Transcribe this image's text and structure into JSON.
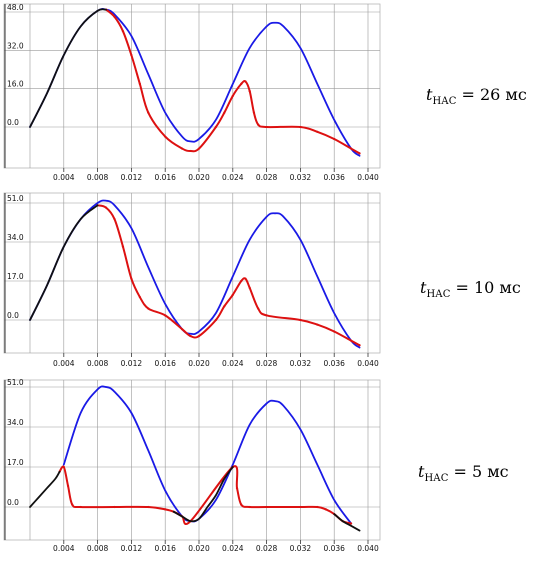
{
  "chart_data": [
    {
      "type": "line",
      "label": {
        "italic": "t",
        "sub": "НАС",
        "rest": " = 26 мс"
      },
      "x_ticks": [
        "0.004",
        "0.008",
        "0.012",
        "0.016",
        "0.020",
        "0.024",
        "0.028",
        "0.032",
        "0.036",
        "0.040"
      ],
      "y_ticks": [
        "0.0",
        "16.0",
        "32.0",
        "48.0"
      ],
      "xlim": [
        0,
        0.04
      ],
      "ylim": [
        -14,
        50
      ],
      "grid": true,
      "series": [
        {
          "color": "#1a1ae6",
          "x": [
            0,
            0.002,
            0.004,
            0.006,
            0.008,
            0.009,
            0.01,
            0.012,
            0.014,
            0.016,
            0.018,
            0.019,
            0.02,
            0.022,
            0.024,
            0.026,
            0.028,
            0.029,
            0.03,
            0.032,
            0.034,
            0.036,
            0.038,
            0.039
          ],
          "y": [
            0,
            14,
            30,
            42,
            48.5,
            49,
            47,
            38,
            22,
            6,
            -4,
            -6,
            -5,
            3,
            18,
            33,
            42,
            43.5,
            42,
            33,
            18,
            3,
            -9,
            -12
          ]
        },
        {
          "color": "#dd1111",
          "x": [
            0.009,
            0.01,
            0.011,
            0.012,
            0.013,
            0.014,
            0.016,
            0.018,
            0.019,
            0.02,
            0.022,
            0.023,
            0.024,
            0.025,
            0.0255,
            0.026,
            0.0265,
            0.027,
            0.028,
            0.032,
            0.034,
            0.036,
            0.038,
            0.039
          ],
          "y": [
            49,
            46,
            40,
            30,
            18,
            6,
            -4,
            -9,
            -10,
            -9,
            0,
            6,
            13,
            18,
            19,
            15,
            6,
            1,
            0,
            0,
            -2,
            -5,
            -9,
            -11
          ]
        },
        {
          "color": "#111111",
          "x": [
            0,
            0.002,
            0.004,
            0.006,
            0.008,
            0.009
          ],
          "y": [
            0,
            14,
            30,
            42,
            48.5,
            49
          ]
        }
      ]
    },
    {
      "type": "line",
      "label": {
        "italic": "t",
        "sub": "НАС",
        "rest": " = 10 мс"
      },
      "x_ticks": [
        "0.004",
        "0.008",
        "0.012",
        "0.016",
        "0.020",
        "0.024",
        "0.028",
        "0.032",
        "0.036",
        "0.040"
      ],
      "y_ticks": [
        "0.0",
        "17.0",
        "34.0",
        "51.0"
      ],
      "xlim": [
        0,
        0.04
      ],
      "ylim": [
        -14,
        53
      ],
      "grid": true,
      "series": [
        {
          "color": "#1a1ae6",
          "x": [
            0,
            0.002,
            0.004,
            0.006,
            0.008,
            0.009,
            0.01,
            0.012,
            0.014,
            0.016,
            0.018,
            0.019,
            0.02,
            0.022,
            0.024,
            0.026,
            0.028,
            0.029,
            0.03,
            0.032,
            0.034,
            0.036,
            0.038,
            0.039
          ],
          "y": [
            0,
            15,
            32,
            44,
            51,
            52,
            50,
            40,
            23,
            7,
            -4,
            -6,
            -5,
            3,
            19,
            35,
            45,
            46.5,
            45,
            35,
            19,
            3,
            -9,
            -12
          ]
        },
        {
          "color": "#dd1111",
          "x": [
            0.008,
            0.009,
            0.01,
            0.011,
            0.012,
            0.013,
            0.014,
            0.016,
            0.018,
            0.019,
            0.02,
            0.022,
            0.023,
            0.024,
            0.025,
            0.0255,
            0.026,
            0.027,
            0.028,
            0.032,
            0.034,
            0.036,
            0.038,
            0.039
          ],
          "y": [
            50,
            49,
            44,
            32,
            18,
            10,
            5,
            2,
            -4,
            -7,
            -7,
            0,
            6,
            11,
            17,
            18,
            14,
            5,
            2,
            0,
            -2,
            -5,
            -9,
            -11
          ]
        },
        {
          "color": "#111111",
          "x": [
            0,
            0.002,
            0.004,
            0.006,
            0.008
          ],
          "y": [
            0,
            15,
            32,
            44,
            50
          ]
        }
      ]
    },
    {
      "type": "line",
      "label": {
        "italic": "t",
        "sub": "НАС",
        "rest": " = 5 мс"
      },
      "x_ticks": [
        "0.004",
        "0.008",
        "0.012",
        "0.016",
        "0.020",
        "0.024",
        "0.028",
        "0.032",
        "0.036",
        "0.040"
      ],
      "y_ticks": [
        "0.0",
        "17.0",
        "34.0",
        "51.0"
      ],
      "xlim": [
        0,
        0.04
      ],
      "ylim": [
        -12,
        53
      ],
      "grid": true,
      "series": [
        {
          "color": "#1a1ae6",
          "x": [
            0.004,
            0.006,
            0.008,
            0.009,
            0.01,
            0.012,
            0.014,
            0.016,
            0.018,
            0.019,
            0.02,
            0.022,
            0.024,
            0.026,
            0.028,
            0.029,
            0.03,
            0.032,
            0.034,
            0.036,
            0.038
          ],
          "y": [
            18,
            40,
            50,
            51,
            49,
            40,
            24,
            7,
            -4,
            -6,
            -5,
            3,
            18,
            35,
            44,
            45,
            43,
            33,
            18,
            3,
            -7
          ]
        },
        {
          "color": "#dd1111",
          "x": [
            0.0035,
            0.004,
            0.0045,
            0.005,
            0.006,
            0.01,
            0.014,
            0.016,
            0.017,
            0.018,
            0.019,
            0.024,
            0.0245,
            0.025,
            0.026,
            0.028,
            0.032,
            0.034,
            0.035,
            0.036,
            0.037,
            0.038
          ],
          "y": [
            15,
            17,
            9,
            1,
            0,
            0,
            0,
            -1,
            -2,
            -4,
            -6,
            17,
            8,
            1,
            0,
            0,
            0,
            0,
            -1,
            -3,
            -6,
            -7
          ]
        },
        {
          "color": "#111111",
          "x": [
            0,
            0.001,
            0.002,
            0.003,
            0.0035,
            0.017,
            0.018,
            0.019,
            0.02,
            0.021,
            0.022,
            0.023,
            0.024,
            0.036,
            0.037,
            0.038,
            0.039
          ],
          "y": [
            0,
            4,
            8,
            12,
            15,
            -2,
            -4,
            -6,
            -5,
            0,
            5,
            12,
            17,
            -3,
            -6,
            -8,
            -10
          ]
        }
      ]
    }
  ]
}
